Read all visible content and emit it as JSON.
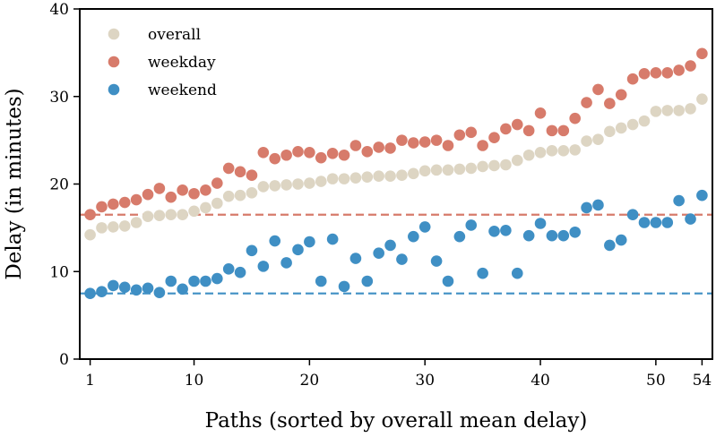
{
  "chart_data": {
    "type": "scatter",
    "title": "",
    "xlabel": "Paths (sorted by overall mean delay)",
    "ylabel": "Delay (in minutes)",
    "xlim": [
      0.1,
      54.9
    ],
    "ylim": [
      0,
      40
    ],
    "x_ticks": [
      1,
      10,
      20,
      30,
      40,
      50,
      54
    ],
    "y_ticks": [
      0,
      10,
      20,
      30,
      40
    ],
    "legend_position": "top-left",
    "grid": false,
    "series": [
      {
        "name": "overall",
        "color": "#ddd5c3",
        "x": [
          1,
          2,
          3,
          4,
          5,
          6,
          7,
          8,
          9,
          10,
          11,
          12,
          13,
          14,
          15,
          16,
          17,
          18,
          19,
          20,
          21,
          22,
          23,
          24,
          25,
          26,
          27,
          28,
          29,
          30,
          31,
          32,
          33,
          34,
          35,
          36,
          37,
          38,
          39,
          40,
          41,
          42,
          43,
          44,
          45,
          46,
          47,
          48,
          49,
          50,
          51,
          52,
          53,
          54
        ],
        "y": [
          14.2,
          15.0,
          15.1,
          15.2,
          15.6,
          16.3,
          16.4,
          16.5,
          16.5,
          16.9,
          17.3,
          17.8,
          18.6,
          18.7,
          19.0,
          19.7,
          19.8,
          19.9,
          20.0,
          20.1,
          20.3,
          20.6,
          20.6,
          20.7,
          20.8,
          20.9,
          20.9,
          21.0,
          21.2,
          21.5,
          21.6,
          21.6,
          21.7,
          21.8,
          22.0,
          22.1,
          22.2,
          22.7,
          23.3,
          23.6,
          23.8,
          23.8,
          23.9,
          24.9,
          25.1,
          26.0,
          26.4,
          26.8,
          27.2,
          28.3,
          28.4,
          28.4,
          28.6,
          29.7
        ]
      },
      {
        "name": "weekday",
        "color": "#d77b6b",
        "x": [
          1,
          2,
          3,
          4,
          5,
          6,
          7,
          8,
          9,
          10,
          11,
          12,
          13,
          14,
          15,
          16,
          17,
          18,
          19,
          20,
          21,
          22,
          23,
          24,
          25,
          26,
          27,
          28,
          29,
          30,
          31,
          32,
          33,
          34,
          35,
          36,
          37,
          38,
          39,
          40,
          41,
          42,
          43,
          44,
          45,
          46,
          47,
          48,
          49,
          50,
          51,
          52,
          53,
          54
        ],
        "y": [
          16.5,
          17.4,
          17.7,
          17.9,
          18.2,
          18.8,
          19.5,
          18.5,
          19.3,
          18.9,
          19.3,
          20.1,
          21.8,
          21.4,
          21.0,
          23.6,
          22.9,
          23.3,
          23.7,
          23.6,
          23.0,
          23.5,
          23.3,
          24.4,
          23.7,
          24.2,
          24.1,
          25.0,
          24.7,
          24.8,
          25.0,
          24.4,
          25.6,
          25.9,
          24.4,
          25.3,
          26.3,
          26.8,
          26.1,
          28.1,
          26.1,
          26.1,
          27.5,
          29.3,
          30.8,
          29.2,
          30.2,
          32.0,
          32.6,
          32.7,
          32.7,
          33.0,
          33.5,
          34.9
        ]
      },
      {
        "name": "weekend",
        "color": "#3f8fc4",
        "x": [
          1,
          2,
          3,
          4,
          5,
          6,
          7,
          8,
          9,
          10,
          11,
          12,
          13,
          14,
          15,
          16,
          17,
          18,
          19,
          20,
          21,
          22,
          23,
          24,
          25,
          26,
          27,
          28,
          29,
          30,
          31,
          32,
          33,
          34,
          35,
          36,
          37,
          38,
          39,
          40,
          41,
          42,
          43,
          44,
          45,
          46,
          47,
          48,
          49,
          50,
          51,
          52,
          53,
          54
        ],
        "y": [
          7.5,
          7.7,
          8.4,
          8.2,
          7.9,
          8.1,
          7.6,
          8.9,
          8.0,
          8.9,
          8.9,
          9.2,
          10.3,
          9.9,
          12.4,
          10.6,
          13.5,
          11.0,
          12.5,
          13.4,
          8.9,
          13.7,
          8.3,
          11.5,
          8.9,
          12.1,
          13.0,
          11.4,
          14.0,
          15.1,
          11.2,
          8.9,
          14.0,
          15.3,
          9.8,
          14.6,
          14.7,
          9.8,
          14.1,
          15.5,
          14.1,
          14.1,
          14.5,
          17.3,
          17.6,
          13.0,
          13.6,
          16.5,
          15.6,
          15.6,
          15.6,
          18.1,
          16.0,
          18.7
        ]
      }
    ],
    "reference_lines": [
      {
        "series": "weekday",
        "y": 16.5,
        "color": "#d77b6b",
        "style": "dashed"
      },
      {
        "series": "weekend",
        "y": 7.5,
        "color": "#3f8fc4",
        "style": "dashed"
      }
    ]
  }
}
